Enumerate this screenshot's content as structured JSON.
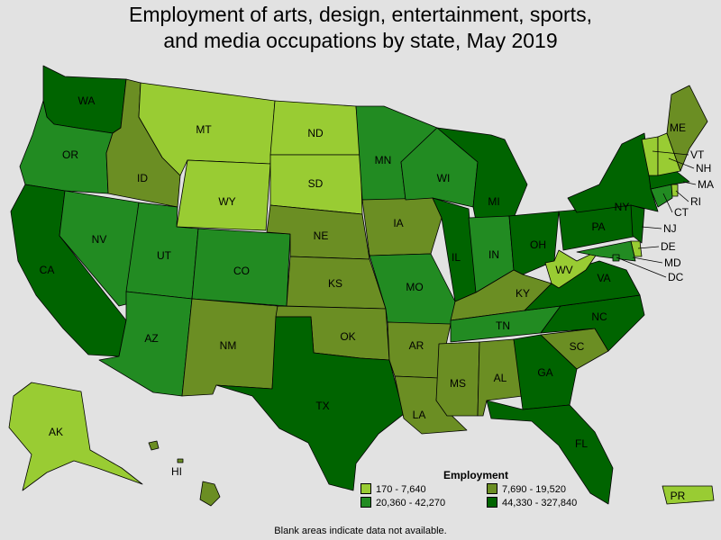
{
  "title_line1": "Employment of arts, design, entertainment, sports,",
  "title_line2": "and media occupations by state, May 2019",
  "legend": {
    "title": "Employment",
    "items": [
      {
        "label": "170 - 7,640",
        "color": "#99cc33"
      },
      {
        "label": "7,690 - 19,520",
        "color": "#6b8e23"
      },
      {
        "label": "20,360 - 42,270",
        "color": "#228b22"
      },
      {
        "label": "44,330 - 327,840",
        "color": "#006400"
      }
    ]
  },
  "footnote": "Blank areas indicate data not available.",
  "states": [
    {
      "code": "WA",
      "class": 3
    },
    {
      "code": "OR",
      "class": 2
    },
    {
      "code": "CA",
      "class": 3
    },
    {
      "code": "ID",
      "class": 1
    },
    {
      "code": "NV",
      "class": 2
    },
    {
      "code": "MT",
      "class": 0
    },
    {
      "code": "WY",
      "class": 0
    },
    {
      "code": "UT",
      "class": 2
    },
    {
      "code": "AZ",
      "class": 2
    },
    {
      "code": "CO",
      "class": 2
    },
    {
      "code": "NM",
      "class": 1
    },
    {
      "code": "ND",
      "class": 0
    },
    {
      "code": "SD",
      "class": 0
    },
    {
      "code": "NE",
      "class": 1
    },
    {
      "code": "KS",
      "class": 1
    },
    {
      "code": "OK",
      "class": 1
    },
    {
      "code": "TX",
      "class": 3
    },
    {
      "code": "MN",
      "class": 2
    },
    {
      "code": "IA",
      "class": 1
    },
    {
      "code": "MO",
      "class": 2
    },
    {
      "code": "AR",
      "class": 1
    },
    {
      "code": "LA",
      "class": 1
    },
    {
      "code": "WI",
      "class": 2
    },
    {
      "code": "IL",
      "class": 3
    },
    {
      "code": "MI",
      "class": 3
    },
    {
      "code": "IN",
      "class": 2
    },
    {
      "code": "OH",
      "class": 3
    },
    {
      "code": "KY",
      "class": 1
    },
    {
      "code": "TN",
      "class": 2
    },
    {
      "code": "MS",
      "class": 1
    },
    {
      "code": "AL",
      "class": 1
    },
    {
      "code": "GA",
      "class": 3
    },
    {
      "code": "FL",
      "class": 3
    },
    {
      "code": "SC",
      "class": 1
    },
    {
      "code": "NC",
      "class": 3
    },
    {
      "code": "VA",
      "class": 3
    },
    {
      "code": "WV",
      "class": 0
    },
    {
      "code": "PA",
      "class": 3
    },
    {
      "code": "NY",
      "class": 3
    },
    {
      "code": "NJ",
      "class": 3
    },
    {
      "code": "DE",
      "class": 0
    },
    {
      "code": "MD",
      "class": 2
    },
    {
      "code": "DC",
      "class": 2
    },
    {
      "code": "CT",
      "class": 2
    },
    {
      "code": "RI",
      "class": 0
    },
    {
      "code": "MA",
      "class": 3
    },
    {
      "code": "VT",
      "class": 0
    },
    {
      "code": "NH",
      "class": 0
    },
    {
      "code": "ME",
      "class": 1
    },
    {
      "code": "AK",
      "class": 0
    },
    {
      "code": "HI",
      "class": 1
    },
    {
      "code": "PR",
      "class": 0
    }
  ]
}
